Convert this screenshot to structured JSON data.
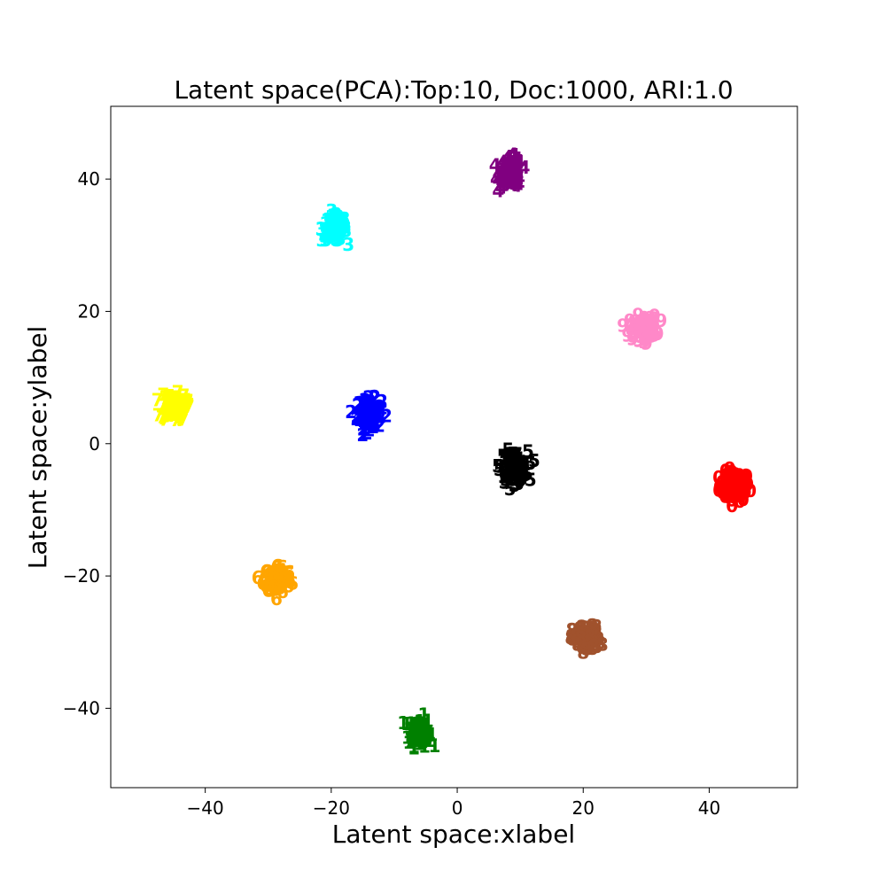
{
  "chart_data": {
    "type": "scatter",
    "title": "Latent space(PCA):Top:10, Doc:1000, ARI:1.0",
    "xlabel": "Latent space:xlabel",
    "ylabel": "Latent space:ylabel",
    "xlim": [
      -55,
      54
    ],
    "ylim": [
      -52,
      51
    ],
    "xticks": [
      -40,
      -20,
      0,
      20,
      40
    ],
    "yticks": [
      -40,
      -20,
      0,
      20,
      40
    ],
    "grid": false,
    "marker": "topic-digit-text",
    "series": [
      {
        "label": "0",
        "color": "#ff0000",
        "center": [
          44,
          -6.5
        ],
        "spread": [
          2.2,
          2.0
        ]
      },
      {
        "label": "1",
        "color": "#008000",
        "center": [
          -6,
          -43.5
        ],
        "spread": [
          1.6,
          2.0
        ]
      },
      {
        "label": "2",
        "color": "#0000ff",
        "center": [
          -14,
          4.5
        ],
        "spread": [
          1.8,
          2.0
        ]
      },
      {
        "label": "3",
        "color": "#00ffff",
        "center": [
          -19.5,
          32.5
        ],
        "spread": [
          1.8,
          1.7
        ]
      },
      {
        "label": "4",
        "color": "#800080",
        "center": [
          8.5,
          41
        ],
        "spread": [
          1.6,
          2.0
        ]
      },
      {
        "label": "5",
        "color": "#000000",
        "center": [
          9,
          -3.5
        ],
        "spread": [
          2.0,
          2.1
        ]
      },
      {
        "label": "6",
        "color": "#ffa500",
        "center": [
          -28.5,
          -20.5
        ],
        "spread": [
          2.0,
          1.9
        ]
      },
      {
        "label": "7",
        "color": "#ffff00",
        "center": [
          -45,
          5.5
        ],
        "spread": [
          1.8,
          1.8
        ]
      },
      {
        "label": "8",
        "color": "#a0522d",
        "center": [
          20.5,
          -29.5
        ],
        "spread": [
          2.0,
          1.7
        ]
      },
      {
        "label": "9",
        "color": "#ff88c8",
        "center": [
          29.5,
          17.5
        ],
        "spread": [
          2.0,
          1.6
        ]
      }
    ]
  }
}
